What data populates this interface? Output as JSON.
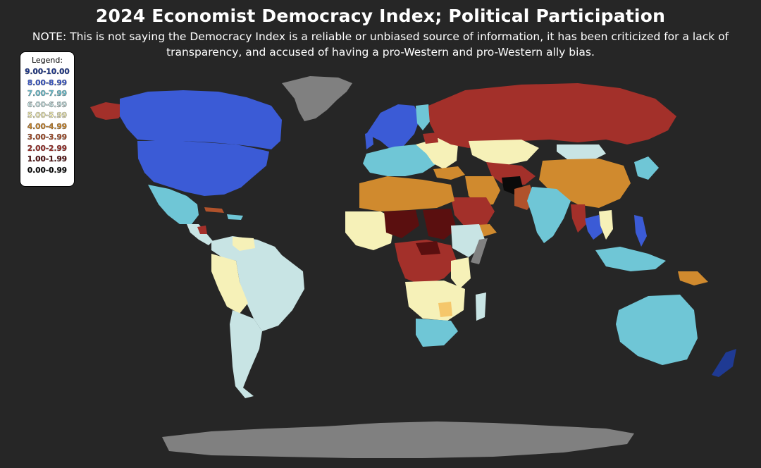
{
  "title": "2024 Economist Democracy Index; Political Participation",
  "note": "NOTE: This is not saying the Democracy Index is a reliable or unbiased source of information, it has been criticized for a lack of transparency, and accused of having a pro-Western and pro-Western ally bias.",
  "legend": {
    "title": "Legend:",
    "items": [
      {
        "label": "9.00-10.00",
        "color": "#1f3a93"
      },
      {
        "label": "8.00-8.99",
        "color": "#3b5bd6"
      },
      {
        "label": "7.00-7.99",
        "color": "#6fc6d6"
      },
      {
        "label": "6.00-6.99",
        "color": "#c8e4e4"
      },
      {
        "label": "5.00-5.99",
        "color": "#f6f1b8"
      },
      {
        "label": "4.00-4.99",
        "color": "#d08a2e"
      },
      {
        "label": "3.00-3.99",
        "color": "#b0522b"
      },
      {
        "label": "2.00-2.99",
        "color": "#a3302a"
      },
      {
        "label": "1.00-1.99",
        "color": "#5a0f0f"
      },
      {
        "label": "0.00-0.99",
        "color": "#0a0a0a"
      }
    ]
  },
  "colors": {
    "no_data": "#808080",
    "background": "#262626"
  }
}
